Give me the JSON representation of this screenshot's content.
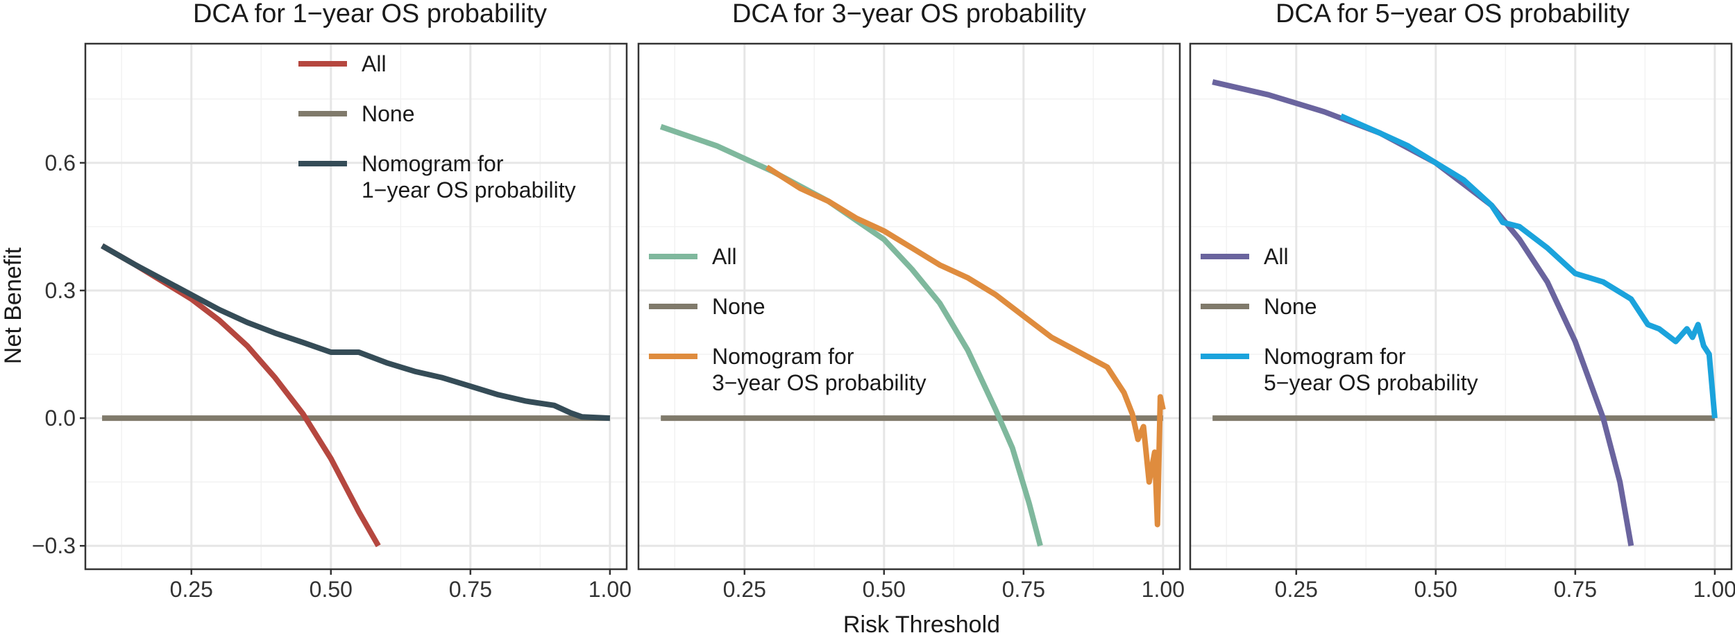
{
  "chart_data": {
    "type": "line",
    "shared": {
      "xlabel": "Risk Threshold",
      "ylabel": "Net Benefit",
      "xlim": [
        0.06,
        1.03
      ],
      "ylim": [
        -0.355,
        0.88
      ],
      "x_ticks": [
        0.25,
        0.5,
        0.75,
        1.0
      ],
      "x_tick_labels": [
        "0.25",
        "0.50",
        "0.75",
        "1.00"
      ],
      "y_ticks": [
        -0.3,
        0.0,
        0.3,
        0.6
      ],
      "y_tick_labels": [
        "−0.3",
        "0.0",
        "0.3",
        "0.6"
      ],
      "grid": true
    },
    "panels": [
      {
        "title": "DCA for 1−year OS probability",
        "legend_position": "top-center",
        "series": [
          {
            "key": "all",
            "name": "All",
            "color": "#b5473f",
            "x": [
              0.09,
              0.15,
              0.2,
              0.25,
              0.3,
              0.35,
              0.4,
              0.45,
              0.5,
              0.55,
              0.585
            ],
            "y": [
              0.405,
              0.36,
              0.32,
              0.28,
              0.23,
              0.17,
              0.095,
              0.01,
              -0.095,
              -0.22,
              -0.3
            ]
          },
          {
            "key": "none",
            "name": "None",
            "color": "#807a6b",
            "x": [
              0.09,
              1.0
            ],
            "y": [
              0.0,
              0.0
            ]
          },
          {
            "key": "model",
            "name": "Nomogram for\n1−year OS probability",
            "color": "#354c57",
            "x": [
              0.09,
              0.15,
              0.2,
              0.25,
              0.3,
              0.35,
              0.4,
              0.45,
              0.5,
              0.55,
              0.6,
              0.65,
              0.7,
              0.75,
              0.8,
              0.85,
              0.9,
              0.93,
              0.95,
              1.0
            ],
            "y": [
              0.405,
              0.36,
              0.325,
              0.29,
              0.255,
              0.225,
              0.2,
              0.178,
              0.155,
              0.155,
              0.13,
              0.11,
              0.095,
              0.075,
              0.055,
              0.04,
              0.03,
              0.012,
              0.003,
              0.0
            ]
          }
        ]
      },
      {
        "title": "DCA for 3−year OS probability",
        "legend_position": "middle-left",
        "series": [
          {
            "key": "all",
            "name": "All",
            "color": "#7fb89d",
            "x": [
              0.1,
              0.2,
              0.3,
              0.4,
              0.5,
              0.55,
              0.6,
              0.65,
              0.7,
              0.73,
              0.76,
              0.78
            ],
            "y": [
              0.685,
              0.64,
              0.58,
              0.51,
              0.42,
              0.35,
              0.27,
              0.16,
              0.02,
              -0.07,
              -0.2,
              -0.3
            ]
          },
          {
            "key": "none",
            "name": "None",
            "color": "#807a6b",
            "x": [
              0.1,
              1.0
            ],
            "y": [
              0.0,
              0.0
            ]
          },
          {
            "key": "model",
            "name": "Nomogram for\n3−year OS probability",
            "color": "#df8c3e",
            "x": [
              0.29,
              0.35,
              0.4,
              0.45,
              0.5,
              0.55,
              0.6,
              0.65,
              0.7,
              0.75,
              0.8,
              0.85,
              0.9,
              0.93,
              0.945,
              0.955,
              0.965,
              0.975,
              0.985,
              0.99,
              0.995,
              1.0
            ],
            "y": [
              0.59,
              0.54,
              0.51,
              0.47,
              0.44,
              0.4,
              0.36,
              0.33,
              0.29,
              0.24,
              0.19,
              0.155,
              0.12,
              0.06,
              0.01,
              -0.05,
              -0.02,
              -0.15,
              -0.08,
              -0.25,
              0.05,
              0.02
            ]
          }
        ]
      },
      {
        "title": "DCA for 5−year OS probability",
        "legend_position": "middle-left",
        "series": [
          {
            "key": "all",
            "name": "All",
            "color": "#6a649e",
            "x": [
              0.1,
              0.2,
              0.3,
              0.4,
              0.5,
              0.55,
              0.6,
              0.65,
              0.7,
              0.75,
              0.8,
              0.83,
              0.85
            ],
            "y": [
              0.79,
              0.76,
              0.72,
              0.67,
              0.6,
              0.55,
              0.5,
              0.42,
              0.32,
              0.18,
              0.0,
              -0.15,
              -0.3
            ]
          },
          {
            "key": "none",
            "name": "None",
            "color": "#807a6b",
            "x": [
              0.1,
              1.0
            ],
            "y": [
              0.0,
              0.0
            ]
          },
          {
            "key": "model",
            "name": "Nomogram for\n5−year OS probability",
            "color": "#1ba3dc",
            "x": [
              0.33,
              0.4,
              0.45,
              0.5,
              0.55,
              0.6,
              0.62,
              0.65,
              0.7,
              0.75,
              0.8,
              0.85,
              0.88,
              0.9,
              0.93,
              0.95,
              0.96,
              0.97,
              0.98,
              0.99,
              1.0
            ],
            "y": [
              0.71,
              0.67,
              0.64,
              0.6,
              0.56,
              0.5,
              0.46,
              0.45,
              0.4,
              0.34,
              0.32,
              0.28,
              0.22,
              0.21,
              0.18,
              0.21,
              0.19,
              0.22,
              0.17,
              0.15,
              0.0
            ]
          }
        ]
      }
    ]
  }
}
